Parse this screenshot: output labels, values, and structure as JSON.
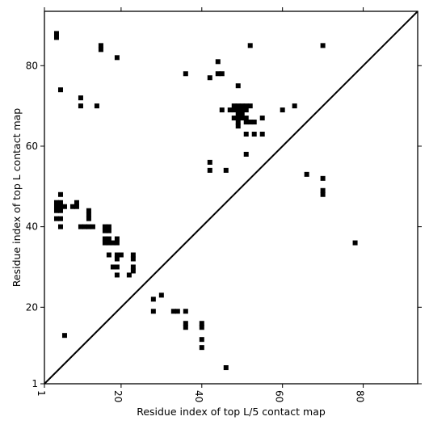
{
  "chart_data": {
    "type": "scatter",
    "xlabel": "Residue index of top L/5 contact map",
    "ylabel": "Residue index of top L contact map",
    "xlim": [
      1,
      93.5
    ],
    "ylim": [
      1,
      93.5
    ],
    "x_ticks": [
      1,
      20,
      40,
      60,
      80
    ],
    "y_ticks": [
      1,
      20,
      40,
      60,
      80
    ],
    "diagonal": true,
    "marker": "square",
    "marker_color": "#000000",
    "upper_points": [
      [
        4,
        88
      ],
      [
        4,
        87
      ],
      [
        15,
        85
      ],
      [
        15,
        84
      ],
      [
        19,
        82
      ],
      [
        5,
        74
      ],
      [
        10,
        72
      ],
      [
        10,
        70
      ],
      [
        14,
        70
      ],
      [
        36,
        78
      ],
      [
        44,
        81
      ],
      [
        44,
        78
      ],
      [
        45,
        78
      ],
      [
        42,
        77
      ],
      [
        49,
        75
      ],
      [
        52,
        85
      ],
      [
        70,
        85
      ],
      [
        45,
        69
      ],
      [
        47,
        69
      ],
      [
        48,
        70
      ],
      [
        49,
        70
      ],
      [
        50,
        70
      ],
      [
        51,
        70
      ],
      [
        52,
        70
      ],
      [
        48,
        69
      ],
      [
        49,
        69
      ],
      [
        50,
        69
      ],
      [
        51,
        69
      ],
      [
        49,
        68
      ],
      [
        50,
        68
      ],
      [
        48,
        67
      ],
      [
        49,
        67
      ],
      [
        50,
        67
      ],
      [
        51,
        67
      ],
      [
        49,
        66
      ],
      [
        51,
        66
      ],
      [
        52,
        66
      ],
      [
        53,
        66
      ],
      [
        49,
        65
      ],
      [
        51,
        63
      ],
      [
        53,
        63
      ],
      [
        55,
        63
      ],
      [
        55,
        67
      ],
      [
        60,
        69
      ],
      [
        63,
        70
      ],
      [
        51,
        58
      ],
      [
        42,
        56
      ],
      [
        42,
        54
      ],
      [
        46,
        54
      ],
      [
        66,
        53
      ],
      [
        70,
        52
      ],
      [
        70,
        49
      ],
      [
        70,
        48
      ],
      [
        5,
        48
      ],
      [
        4,
        46
      ],
      [
        5,
        46
      ],
      [
        4,
        45
      ],
      [
        5,
        45
      ],
      [
        6,
        45
      ],
      [
        4,
        44
      ],
      [
        5,
        44
      ],
      [
        8,
        45
      ],
      [
        9,
        45
      ],
      [
        9,
        46
      ],
      [
        12,
        44
      ],
      [
        12,
        43
      ],
      [
        12,
        42
      ],
      [
        4,
        42
      ],
      [
        5,
        42
      ],
      [
        5,
        40
      ],
      [
        10,
        40
      ],
      [
        11,
        40
      ],
      [
        12,
        40
      ],
      [
        13,
        40
      ],
      [
        16,
        40
      ],
      [
        17,
        40
      ],
      [
        16,
        39
      ],
      [
        17,
        39
      ],
      [
        16,
        37
      ],
      [
        17,
        37
      ],
      [
        16,
        36
      ],
      [
        17,
        36
      ],
      [
        18,
        36
      ],
      [
        19,
        36
      ],
      [
        19,
        37
      ],
      [
        17,
        33
      ],
      [
        19,
        33
      ],
      [
        20,
        33
      ],
      [
        19,
        32
      ],
      [
        23,
        33
      ],
      [
        23,
        32
      ],
      [
        18,
        30
      ],
      [
        19,
        30
      ],
      [
        23,
        30
      ],
      [
        23,
        29
      ],
      [
        19,
        28
      ],
      [
        22,
        28
      ]
    ],
    "lower_points": [
      [
        78,
        36
      ],
      [
        28,
        22
      ],
      [
        30,
        23
      ],
      [
        28,
        19
      ],
      [
        33,
        19
      ],
      [
        34,
        19
      ],
      [
        36,
        19
      ],
      [
        36,
        16
      ],
      [
        36,
        15
      ],
      [
        40,
        16
      ],
      [
        40,
        15
      ],
      [
        40,
        12
      ],
      [
        40,
        10
      ],
      [
        6,
        13
      ],
      [
        46,
        5
      ]
    ]
  }
}
